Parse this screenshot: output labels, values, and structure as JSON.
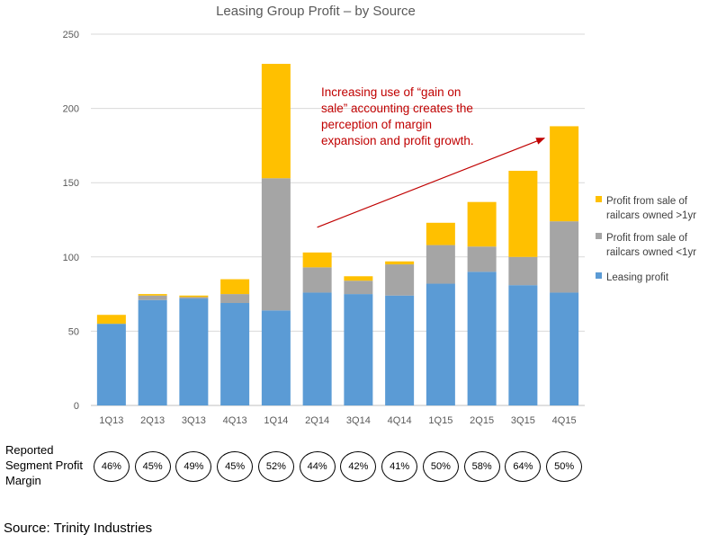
{
  "chart_data": {
    "type": "bar",
    "stacked": true,
    "title": "Leasing Group Profit – by Source",
    "categories": [
      "1Q13",
      "2Q13",
      "3Q13",
      "4Q13",
      "1Q14",
      "2Q14",
      "3Q14",
      "4Q14",
      "1Q15",
      "2Q15",
      "3Q15",
      "4Q15"
    ],
    "ylim": [
      0,
      250
    ],
    "yticks": [
      0,
      50,
      100,
      150,
      200,
      250
    ],
    "grid": true,
    "legend_position": "right",
    "series": [
      {
        "name": "Leasing profit",
        "color": "#5b9bd5",
        "values": [
          55,
          71,
          72,
          69,
          64,
          76,
          75,
          74,
          82,
          90,
          81,
          76
        ]
      },
      {
        "name": "Profit from sale of railcars owned <1yr",
        "color": "#a5a5a5",
        "values": [
          0,
          3,
          1,
          6,
          89,
          17,
          9,
          21,
          26,
          17,
          19,
          48
        ]
      },
      {
        "name": "Profit from sale of railcars owned >1yr",
        "color": "#ffc000",
        "values": [
          6,
          1,
          1,
          10,
          77,
          10,
          3,
          2,
          15,
          30,
          58,
          64
        ]
      }
    ],
    "legend_lines": [
      [
        "Profit from sale of",
        "railcars owned >1yr"
      ],
      [
        "Profit from sale of",
        "railcars owned <1yr"
      ],
      [
        "Leasing profit"
      ]
    ],
    "annotation": {
      "lines": [
        "Increasing use of “gain on",
        "sale” accounting creates the",
        "perception of margin",
        "expansion and profit growth."
      ],
      "color": "#c00000"
    },
    "arrow": {
      "from": [
        "2Q14",
        120
      ],
      "to": [
        "4Q15",
        180
      ]
    }
  },
  "margins": {
    "label_lines": [
      "Reported",
      "Segment Profit",
      "Margin"
    ],
    "values": [
      "46%",
      "45%",
      "49%",
      "45%",
      "52%",
      "44%",
      "42%",
      "41%",
      "50%",
      "58%",
      "64%",
      "50%"
    ]
  },
  "source": "Source: Trinity Industries"
}
